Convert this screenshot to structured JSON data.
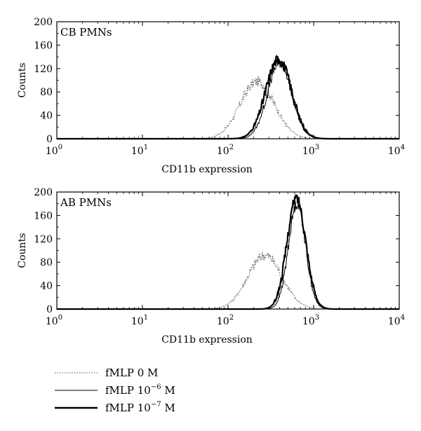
{
  "chart_data": [
    {
      "type": "line",
      "panel_label": "CB PMNs",
      "xlabel": "CD11b expression",
      "ylabel": "Counts",
      "xscale": "log",
      "xlim": [
        1,
        10000
      ],
      "ylim": [
        0,
        200
      ],
      "x_ticks": [
        {
          "base": "10",
          "exp": "0"
        },
        {
          "base": "10",
          "exp": "1"
        },
        {
          "base": "10",
          "exp": "2"
        },
        {
          "base": "10",
          "exp": "3"
        },
        {
          "base": "10",
          "exp": "4"
        }
      ],
      "y_ticks": [
        "0",
        "40",
        "80",
        "120",
        "160",
        "200"
      ],
      "series": [
        {
          "style": "dotted",
          "mean": 220,
          "sigma": 0.2,
          "peak": 98
        },
        {
          "style": "thin",
          "mean": 400,
          "sigma": 0.14,
          "peak": 130
        },
        {
          "style": "thick",
          "mean": 390,
          "sigma": 0.15,
          "peak": 136
        }
      ]
    },
    {
      "type": "line",
      "panel_label": "AB PMNs",
      "xlabel": "CD11b expression",
      "ylabel": "Counts",
      "xscale": "log",
      "xlim": [
        1,
        10000
      ],
      "ylim": [
        0,
        200
      ],
      "x_ticks": [
        {
          "base": "10",
          "exp": "0"
        },
        {
          "base": "10",
          "exp": "1"
        },
        {
          "base": "10",
          "exp": "2"
        },
        {
          "base": "10",
          "exp": "3"
        },
        {
          "base": "10",
          "exp": "4"
        }
      ],
      "y_ticks": [
        "0",
        "40",
        "80",
        "120",
        "160",
        "200"
      ],
      "series": [
        {
          "style": "dotted",
          "mean": 270,
          "sigma": 0.2,
          "peak": 92
        },
        {
          "style": "thin",
          "mean": 640,
          "sigma": 0.1,
          "peak": 180
        },
        {
          "style": "thick",
          "mean": 630,
          "sigma": 0.11,
          "peak": 190
        }
      ]
    }
  ],
  "legend": {
    "position": "bottom-left",
    "entries": [
      {
        "style": "dotted",
        "text": "fMLP 0 M",
        "base": "",
        "exp": ""
      },
      {
        "style": "thin",
        "text": "fMLP 10",
        "exp": "−6",
        "unit": " M"
      },
      {
        "style": "thick",
        "text": "fMLP 10",
        "exp": "−7",
        "unit": " M"
      }
    ]
  }
}
